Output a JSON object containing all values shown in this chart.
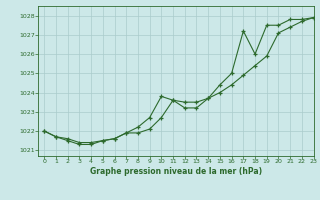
{
  "title": "Graphe pression niveau de la mer (hPa)",
  "bg_color": "#cce8e8",
  "grid_color": "#aacccc",
  "line_color": "#2d6a2d",
  "marker_color": "#2d6a2d",
  "xlim": [
    -0.5,
    23
  ],
  "ylim": [
    1020.7,
    1028.5
  ],
  "yticks": [
    1021,
    1022,
    1023,
    1024,
    1025,
    1026,
    1027,
    1028
  ],
  "xticks": [
    0,
    1,
    2,
    3,
    4,
    5,
    6,
    7,
    8,
    9,
    10,
    11,
    12,
    13,
    14,
    15,
    16,
    17,
    18,
    19,
    20,
    21,
    22,
    23
  ],
  "series1": [
    1022.0,
    1021.7,
    1021.6,
    1021.4,
    1021.4,
    1021.5,
    1021.6,
    1021.9,
    1021.9,
    1022.1,
    1022.7,
    1023.6,
    1023.5,
    1023.5,
    1023.7,
    1024.0,
    1024.4,
    1024.9,
    1025.4,
    1025.9,
    1027.1,
    1027.4,
    1027.7,
    1027.9
  ],
  "series2": [
    1022.0,
    1021.7,
    1021.5,
    1021.3,
    1021.3,
    1021.5,
    1021.6,
    1021.9,
    1022.2,
    1022.7,
    1023.8,
    1023.6,
    1023.2,
    1023.2,
    1023.7,
    1024.4,
    1025.0,
    1027.2,
    1026.0,
    1027.5,
    1027.5,
    1027.8,
    1027.8,
    1027.9
  ]
}
